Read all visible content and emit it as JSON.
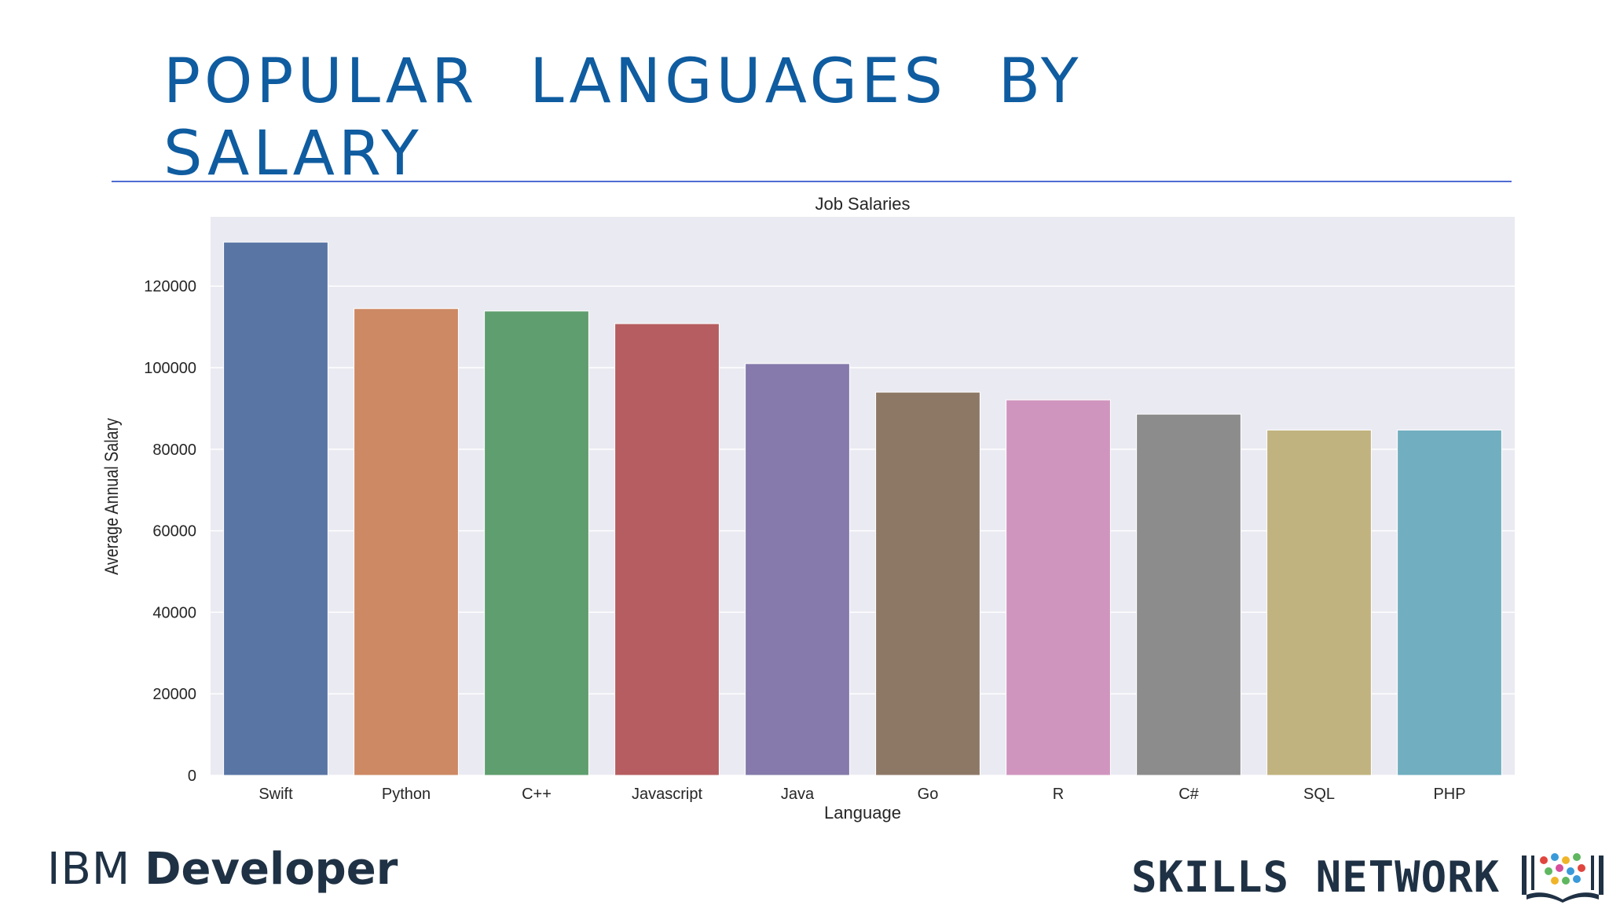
{
  "slide": {
    "title": "POPULAR LANGUAGES BY SALARY"
  },
  "logos": {
    "ibm_prefix": "IBM",
    "ibm_suffix": "Developer",
    "skills_network": "SKILLS NETWORK"
  },
  "colors": {
    "title": "#0f5ca0",
    "rule": "#4f6bd3",
    "plot_background": "#eaeaf2",
    "grid": "#ffffff"
  },
  "chart_data": {
    "type": "bar",
    "title": "Job Salaries",
    "xlabel": "Language",
    "ylabel": "Average Annual Salary",
    "categories": [
      "Swift",
      "Python",
      "C++",
      "Javascript",
      "Java",
      "Go",
      "R",
      "C#",
      "SQL",
      "PHP"
    ],
    "values": [
      130800,
      114500,
      113900,
      110800,
      101000,
      94000,
      92100,
      88600,
      84700,
      84700
    ],
    "colors": [
      "#5975a4",
      "#cc8963",
      "#5f9e6e",
      "#b55d60",
      "#857aab",
      "#8d7866",
      "#d095bf",
      "#8c8c8c",
      "#c1b37f",
      "#71aec0"
    ],
    "yticks": [
      0,
      20000,
      40000,
      60000,
      80000,
      100000,
      120000
    ],
    "ylim": [
      0,
      137000
    ],
    "grid": true
  }
}
